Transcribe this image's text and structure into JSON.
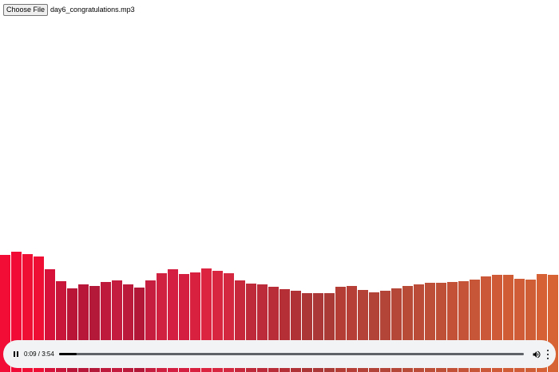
{
  "file_input": {
    "button_label": "Choose File",
    "file_name": "day6_congratulations.mp3"
  },
  "player": {
    "current_time": "0:09",
    "duration": "3:54",
    "time_separator": " / ",
    "progress_fraction": 0.038,
    "state": "playing",
    "icons": {
      "pause": "pause-icon",
      "volume": "volume-icon",
      "more": "more-options-icon"
    }
  },
  "visualizer": {
    "bar_levels": [
      147,
      151,
      148,
      145,
      129,
      114,
      105,
      110,
      108,
      113,
      115,
      110,
      106,
      115,
      124,
      129,
      123,
      125,
      130,
      127,
      124,
      115,
      111,
      110,
      107,
      104,
      102,
      99,
      99,
      99,
      107,
      108,
      103,
      100,
      102,
      105,
      108,
      110,
      112,
      112,
      113,
      114,
      116,
      120,
      122,
      122,
      117,
      116,
      123,
      122
    ],
    "bar_colors": [
      "#f20d36",
      "#f20a36",
      "#ef0e34",
      "#ef0e34",
      "#d6123a",
      "#c7163a",
      "#b91537",
      "#b91739",
      "#b51939",
      "#bd1a3c",
      "#c41c3e",
      "#bb1a3b",
      "#b31737",
      "#c51e3e",
      "#d12141",
      "#d51f42",
      "#d51f40",
      "#d8203f",
      "#dc2340",
      "#d82640",
      "#d42740",
      "#c8283c",
      "#bf2a3a",
      "#bb2b3a",
      "#b82d38",
      "#b42f36",
      "#b13236",
      "#ac3536",
      "#ab3836",
      "#a93a36",
      "#b43e36",
      "#b64038",
      "#b44238",
      "#b14338",
      "#b34538",
      "#b54738",
      "#b84a38",
      "#bb4c38",
      "#bd4e38",
      "#bf5038",
      "#c25138",
      "#c45338",
      "#c75538",
      "#cb5838",
      "#ce5a38",
      "#d05c36",
      "#cf5c36",
      "#cf5e36",
      "#d56134",
      "#d76234"
    ],
    "bar_unit_max": 467
  }
}
